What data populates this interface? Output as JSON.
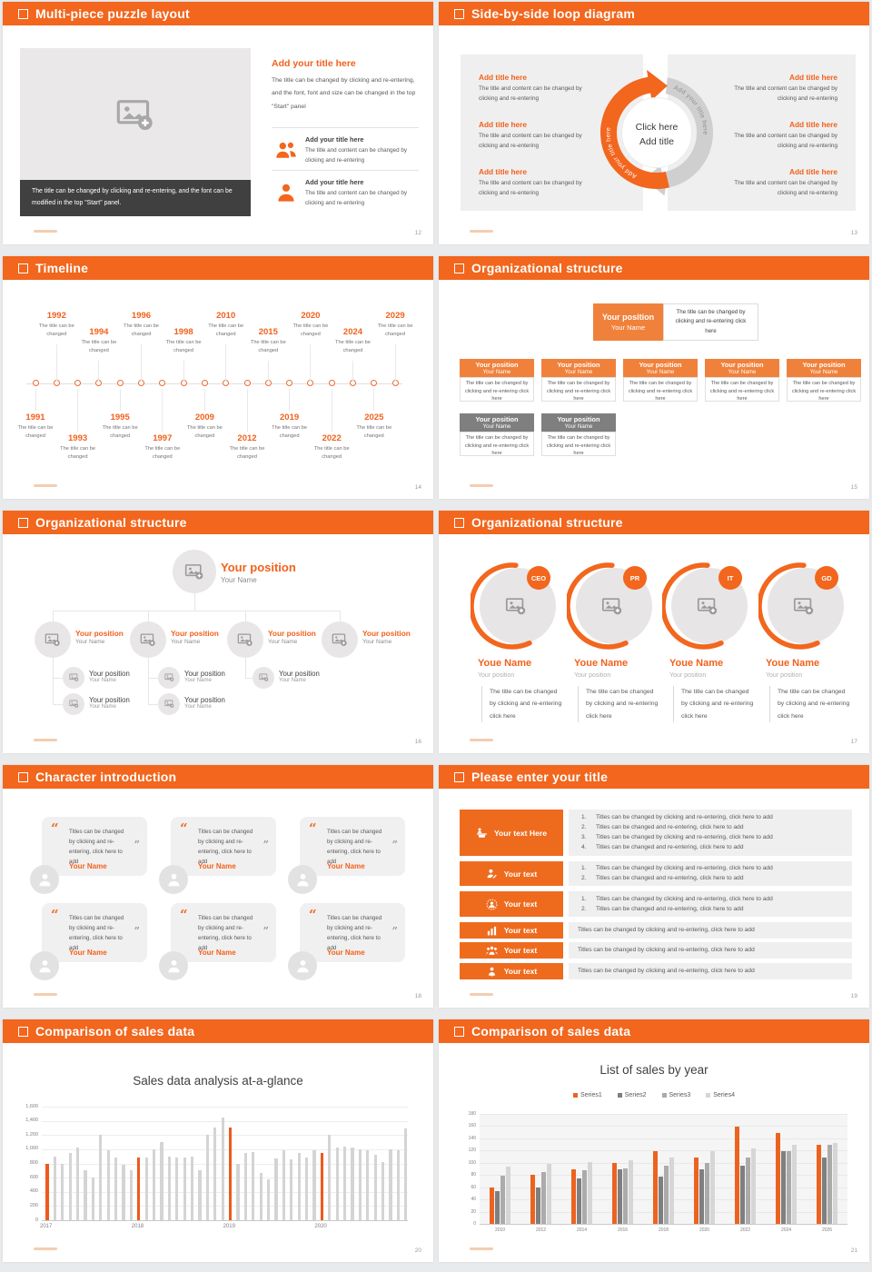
{
  "colors": {
    "accent": "#F2661D",
    "accent_text": "#F2611C",
    "org_orange": "#F0813B",
    "org_gray": "#7F7F7F",
    "dark_caption": "#404040",
    "panel_gray": "#EFEFEF",
    "body_text": "#595959"
  },
  "slides": {
    "puzzle": {
      "title": "Multi-piece puzzle layout",
      "page": "12",
      "image_caption": "The title can be changed by clicking and re-entering, and the font can be modified in the top \"Start\" panel.",
      "heading": "Add your title here",
      "body": "The title can be changed by clicking and re-entering, and the font, font and size can be changed in the top \"Start\" panel",
      "items": [
        {
          "icon": "people-icon",
          "title": "Add your title here",
          "text": "The title and content can be changed by clicking and re-entering"
        },
        {
          "icon": "person-icon",
          "title": "Add your title here",
          "text": "The title and content can be changed by clicking and re-entering"
        }
      ]
    },
    "loop": {
      "title": "Side-by-side loop diagram",
      "page": "13",
      "left_items": [
        {
          "title": "Add title here",
          "text": "The title and content can be changed by clicking and re-entering"
        },
        {
          "title": "Add title here",
          "text": "The title and content can be changed by clicking and re-entering"
        },
        {
          "title": "Add title here",
          "text": "The title and content can be changed by clicking and re-entering"
        }
      ],
      "right_items": [
        {
          "title": "Add title here",
          "text": "The title and content can be changed by clicking and re-entering"
        },
        {
          "title": "Add title here",
          "text": "The title and content can be changed by clicking and re-entering"
        },
        {
          "title": "Add title here",
          "text": "The title and content can be changed by clicking and re-entering"
        }
      ],
      "center": [
        "Click here",
        "Add title"
      ],
      "arc_label_left": "Add your title here",
      "arc_label_right": "Add your title here"
    },
    "timeline": {
      "title": "Timeline",
      "page": "14",
      "entry_text": "The title can be changed",
      "entries": [
        {
          "year": "1991",
          "side": "below",
          "far": false
        },
        {
          "year": "1992",
          "side": "above",
          "far": true
        },
        {
          "year": "1993",
          "side": "below",
          "far": true
        },
        {
          "year": "1994",
          "side": "above",
          "far": false
        },
        {
          "year": "1995",
          "side": "below",
          "far": false
        },
        {
          "year": "1996",
          "side": "above",
          "far": true
        },
        {
          "year": "1997",
          "side": "below",
          "far": true
        },
        {
          "year": "1998",
          "side": "above",
          "far": false
        },
        {
          "year": "2009",
          "side": "below",
          "far": false
        },
        {
          "year": "2010",
          "side": "above",
          "far": true
        },
        {
          "year": "2012",
          "side": "below",
          "far": true
        },
        {
          "year": "2015",
          "side": "above",
          "far": false
        },
        {
          "year": "2019",
          "side": "below",
          "far": false
        },
        {
          "year": "2020",
          "side": "above",
          "far": true
        },
        {
          "year": "2022",
          "side": "below",
          "far": true
        },
        {
          "year": "2024",
          "side": "above",
          "far": false
        },
        {
          "year": "2025",
          "side": "below",
          "far": false
        },
        {
          "year": "2029",
          "side": "above",
          "far": true
        }
      ]
    },
    "org_boxes": {
      "title": "Organizational structure",
      "page": "15",
      "position": "Your position",
      "name": "Your Name",
      "note": "The title can be changed by clicking and re-entering click here",
      "row1_count": 5,
      "row2_count": 2
    },
    "org_tree": {
      "title": "Organizational structure",
      "page": "16",
      "position": "Your position",
      "name": "Your Name",
      "children_per_branch": [
        2,
        2,
        1,
        0
      ]
    },
    "org_circles": {
      "title": "Organizational structure",
      "page": "17",
      "roles": [
        "CEO",
        "PR",
        "IT",
        "GD"
      ],
      "name": "Youe Name",
      "position": "Your position",
      "text": "The title can be changed by clicking and re-entering click here"
    },
    "characters": {
      "title": "Character introduction",
      "page": "18",
      "quote": "Titles can be changed by clicking and re-entering, click here to add",
      "name": "Your Name",
      "card_count": 6
    },
    "title_list": {
      "title": "Please enter your title",
      "page": "19",
      "rows": [
        {
          "icon": "presenter-icon",
          "label": "Your text Here",
          "numbered": [
            "Titles can be changed by clicking and re-entering, click here to add",
            "Titles can be changed and re-entering, click here to add",
            "Titles can be changed by clicking and re-entering, click here to add",
            "Titles can be changed and re-entering, click here to add"
          ]
        },
        {
          "icon": "user-edit-icon",
          "label": "Your text",
          "numbered": [
            "Titles can be changed by clicking and re-entering, click here to add",
            "Titles can be changed and re-entering, click here to add"
          ]
        },
        {
          "icon": "user-gear-icon",
          "label": "Your text",
          "numbered": [
            "Titles can be changed by clicking and re-entering, click here to add",
            "Titles can be changed and re-entering, click here to add"
          ]
        },
        {
          "icon": "bar-chart-icon",
          "label": "Your text",
          "text": "Titles can be changed by clicking and re-entering, click here to add"
        },
        {
          "icon": "team-icon",
          "label": "Your text",
          "text": "Titles can be changed by clicking and re-entering, click here to add"
        },
        {
          "icon": "user-badge-icon",
          "label": "Your text",
          "text": "Titles can be changed by clicking and re-entering, click here to add"
        }
      ]
    },
    "chart1": {
      "title": "Comparison of sales data",
      "page": "20"
    },
    "chart2": {
      "title": "Comparison of sales data",
      "page": "21"
    }
  },
  "chart_data": [
    {
      "type": "bar",
      "title": "Sales data analysis at-a-glance",
      "ylim": [
        0,
        1600
      ],
      "ytick_labels": [
        "0",
        "200",
        "400",
        "600",
        "800",
        "1,000",
        "1,200",
        "1,400",
        "1,600"
      ],
      "year_labels": [
        "2017",
        "2018",
        "2019",
        "2020"
      ],
      "accent_indices": [
        0,
        12,
        24,
        36
      ],
      "bar_color": "#D4D4D4",
      "accent_color": "#EB5A1E",
      "values": [
        800,
        900,
        800,
        950,
        1020,
        700,
        600,
        1210,
        980,
        890,
        780,
        700,
        880,
        890,
        1000,
        1100,
        900,
        890,
        880,
        900,
        700,
        1200,
        1300,
        1450,
        1300,
        800,
        950,
        960,
        670,
        580,
        870,
        980,
        860,
        950,
        890,
        980,
        950,
        1200,
        1030,
        1040,
        1030,
        1000,
        990,
        920,
        820,
        1000,
        990,
        1290
      ]
    },
    {
      "type": "grouped-bar",
      "title": "List of sales by year",
      "ylim": [
        0,
        180
      ],
      "ytick_labels": [
        "0",
        "20",
        "40",
        "60",
        "80",
        "100",
        "120",
        "140",
        "160",
        "180"
      ],
      "categories": [
        "2010",
        "2012",
        "2014",
        "2016",
        "2018",
        "2020",
        "2022",
        "2024",
        "2026"
      ],
      "legend_position": "top",
      "series": [
        {
          "name": "Series1",
          "color": "#EC6320",
          "values": [
            60,
            80,
            90,
            99,
            119,
            109,
            159,
            149,
            130
          ]
        },
        {
          "name": "Series2",
          "color": "#7F7F7F",
          "values": [
            54,
            60,
            74,
            89,
            77,
            89,
            95,
            119,
            108
          ]
        },
        {
          "name": "Series3",
          "color": "#ABABAB",
          "values": [
            79,
            85,
            88,
            91,
            96,
            100,
            108,
            119,
            129
          ]
        },
        {
          "name": "Series4",
          "color": "#D6D6D6",
          "values": [
            94,
            98,
            101,
            104,
            108,
            119,
            124,
            130,
            133
          ]
        }
      ]
    }
  ]
}
